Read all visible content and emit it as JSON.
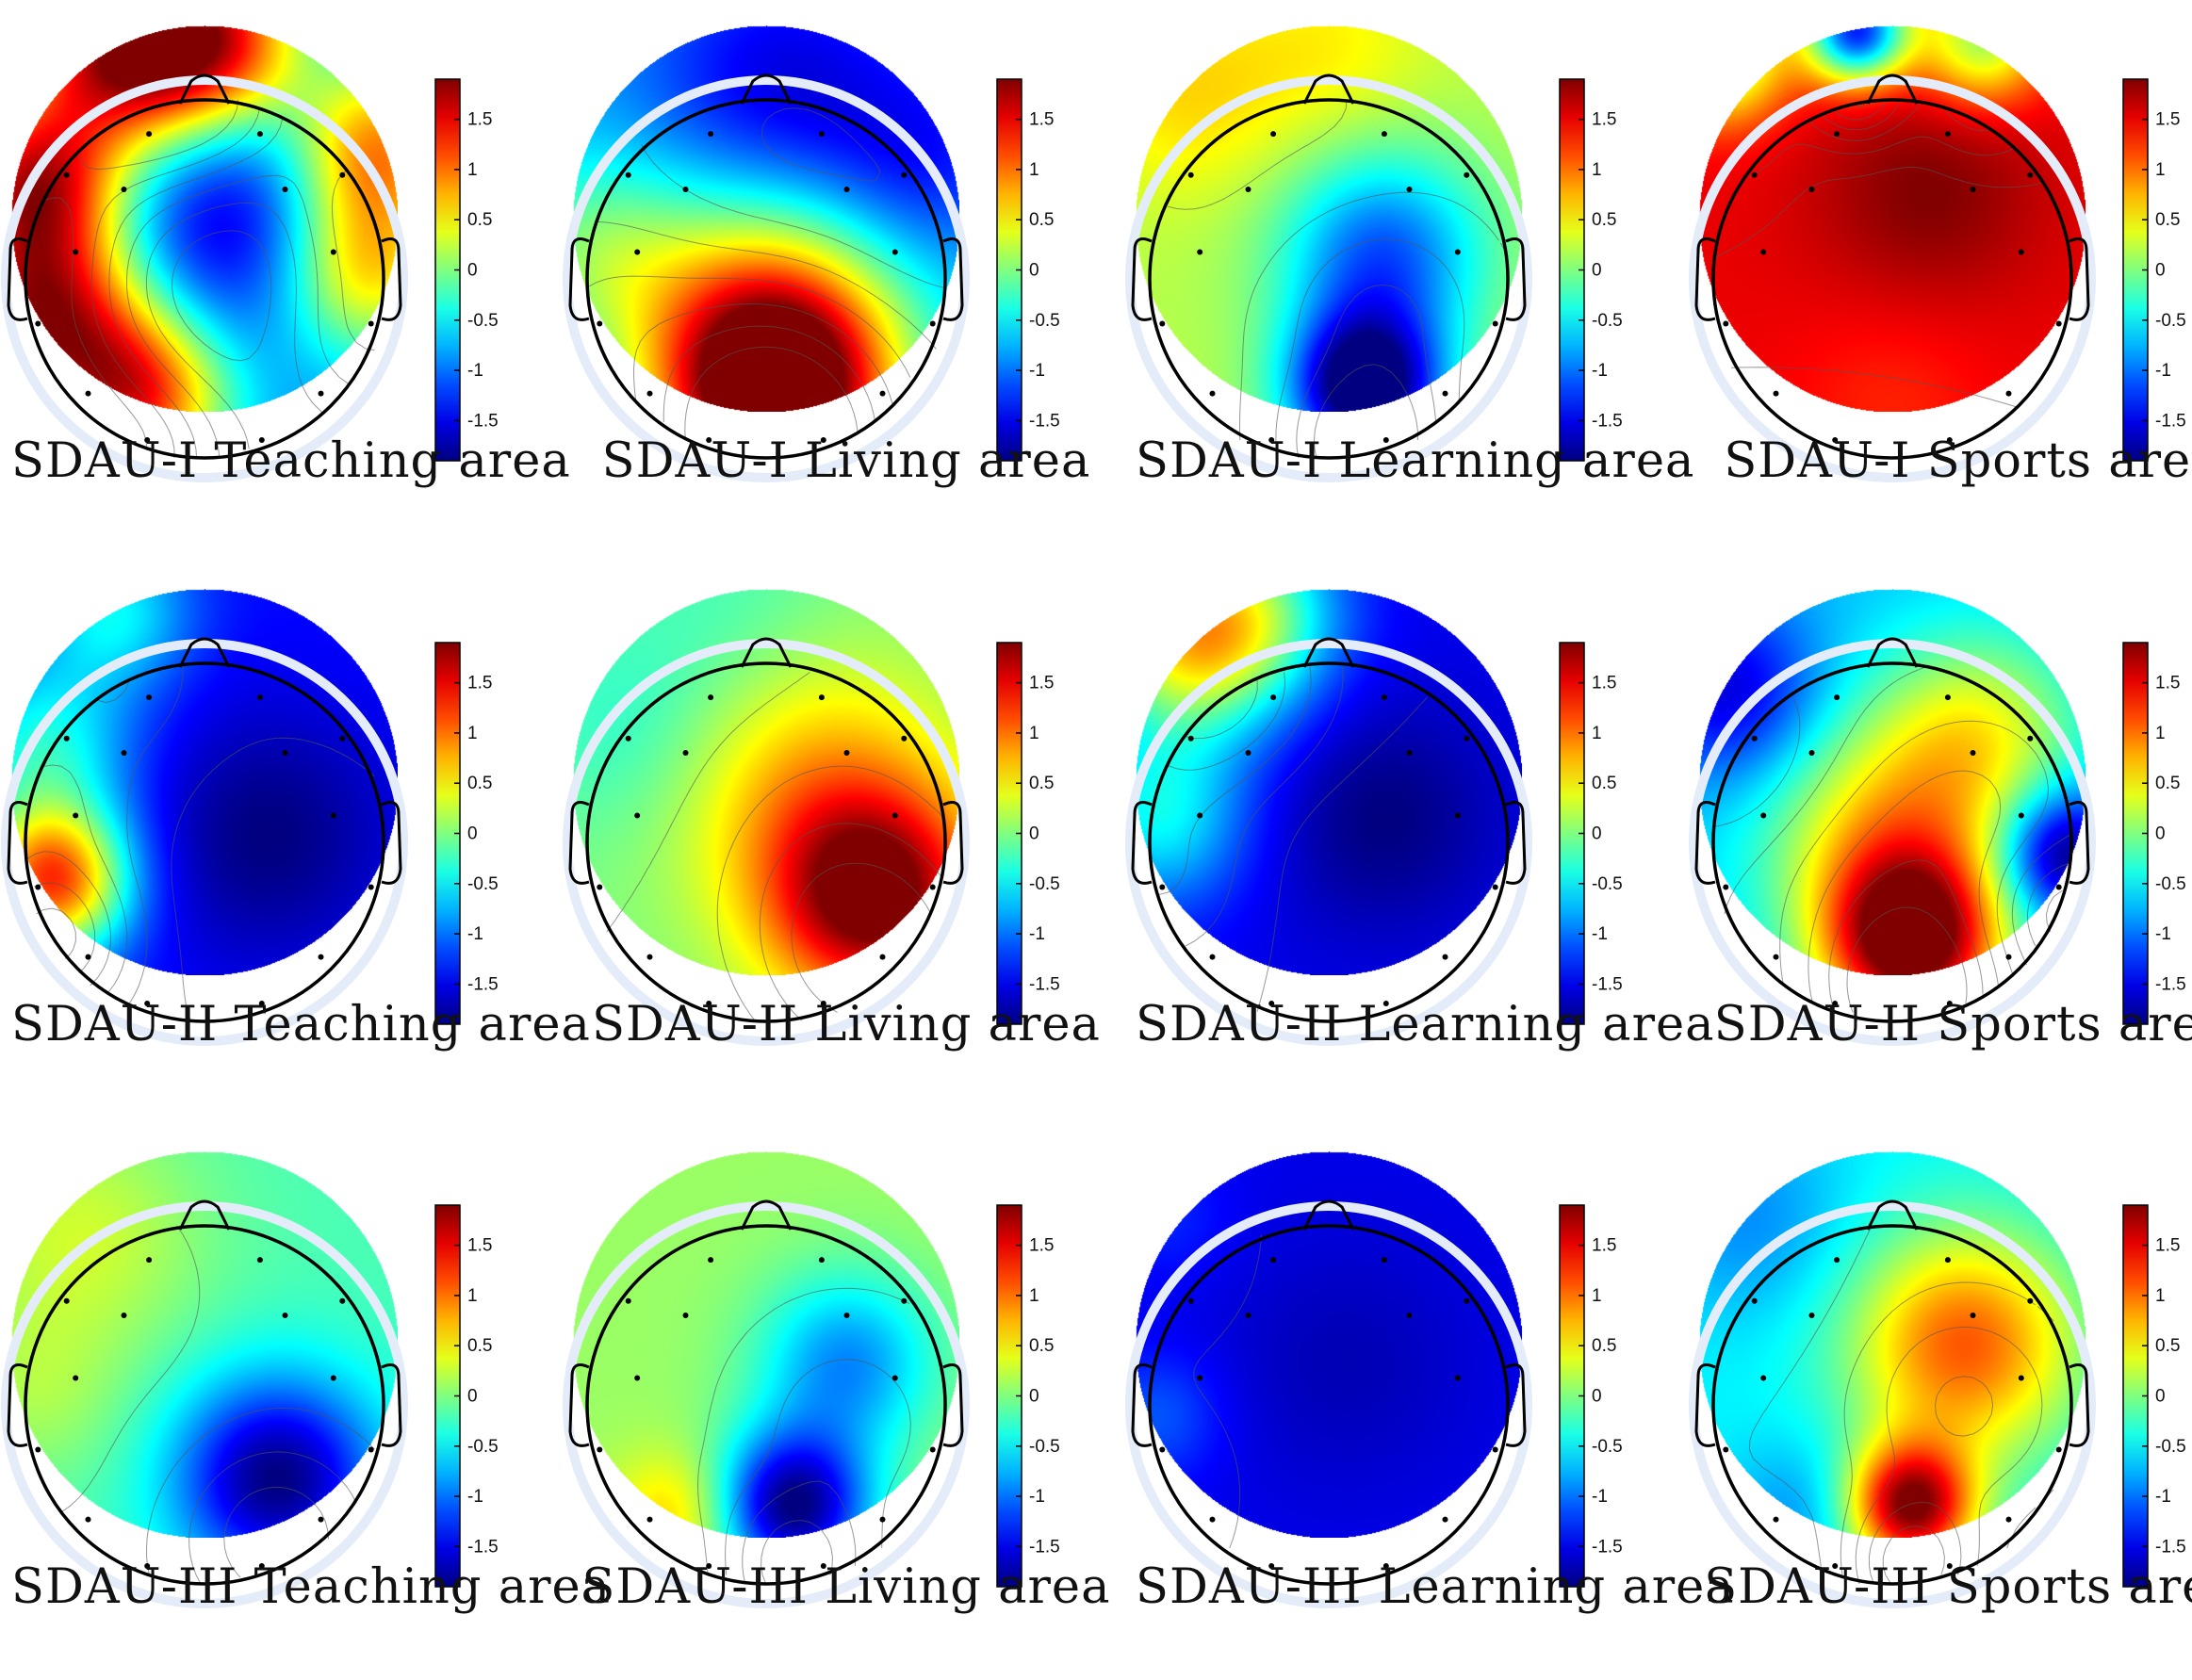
{
  "chart_data": {
    "type": "heatmap",
    "description_rows": [
      "SDAU-I",
      "SDAU-II",
      "SDAU-III"
    ],
    "description_cols": [
      "Teaching area",
      "Living area",
      "Learning area",
      "Sports area"
    ],
    "colorbar": {
      "range": [
        -1.9,
        1.9
      ],
      "ticks": [
        1.5,
        1,
        0.5,
        0,
        -0.5,
        -1,
        -1.5
      ],
      "tick_labels": [
        "1.5",
        "1",
        "0.5",
        "0",
        "-0.5",
        "-1",
        "-1.5"
      ],
      "colormap": "jet"
    },
    "electrodes": [
      {
        "x": -0.31,
        "y": -0.81
      },
      {
        "x": 0.31,
        "y": -0.81
      },
      {
        "x": -0.77,
        "y": -0.58
      },
      {
        "x": -0.45,
        "y": -0.5
      },
      {
        "x": 0.45,
        "y": -0.5
      },
      {
        "x": 0.77,
        "y": -0.58
      },
      {
        "x": -0.72,
        "y": -0.15
      },
      {
        "x": 0.72,
        "y": -0.15
      },
      {
        "x": -0.93,
        "y": 0.25
      },
      {
        "x": 0.93,
        "y": 0.25
      },
      {
        "x": -0.65,
        "y": 0.64
      },
      {
        "x": 0.65,
        "y": 0.64
      },
      {
        "x": -0.32,
        "y": 0.9
      },
      {
        "x": 0.32,
        "y": 0.9
      }
    ],
    "panels": [
      {
        "label": "SDAU-I  Teaching area",
        "base": -0.9,
        "blobs": [
          {
            "x": -0.45,
            "y": -0.95,
            "s": 0.4,
            "a": 2.6
          },
          {
            "x": 0.1,
            "y": -1.0,
            "s": 0.35,
            "a": 1.8
          },
          {
            "x": -0.95,
            "y": -0.2,
            "s": 0.35,
            "a": 2.2
          },
          {
            "x": -0.9,
            "y": 0.55,
            "s": 0.4,
            "a": 2.4
          },
          {
            "x": -0.35,
            "y": 1.0,
            "s": 0.35,
            "a": 2.0
          },
          {
            "x": 0.95,
            "y": -0.4,
            "s": 0.35,
            "a": 1.8
          },
          {
            "x": 0.9,
            "y": 0.3,
            "s": 0.35,
            "a": 1.5
          },
          {
            "x": 0.15,
            "y": 0.0,
            "s": 0.5,
            "a": -0.8
          }
        ]
      },
      {
        "label": "SDAU-I  Living area",
        "base": -0.8,
        "blobs": [
          {
            "x": 0.05,
            "y": 1.0,
            "s": 0.45,
            "a": 2.9
          },
          {
            "x": 0.0,
            "y": 0.5,
            "s": 0.55,
            "a": 1.3
          },
          {
            "x": -0.95,
            "y": 0.2,
            "s": 0.4,
            "a": 0.7
          },
          {
            "x": 0.1,
            "y": -0.7,
            "s": 0.55,
            "a": -0.8
          },
          {
            "x": 0.9,
            "y": -0.3,
            "s": 0.4,
            "a": -0.5
          }
        ]
      },
      {
        "label": "SDAU-I  Learning area",
        "base": 0.2,
        "blobs": [
          {
            "x": 0.2,
            "y": 0.95,
            "s": 0.3,
            "a": -2.4
          },
          {
            "x": 0.3,
            "y": 0.2,
            "s": 0.4,
            "a": -1.3
          },
          {
            "x": -0.8,
            "y": -0.7,
            "s": 0.4,
            "a": 0.4
          },
          {
            "x": 0.0,
            "y": -0.95,
            "s": 0.4,
            "a": 0.3
          }
        ]
      },
      {
        "label": "SDAU-I  Sports area",
        "base": 1.5,
        "blobs": [
          {
            "x": -0.2,
            "y": -1.05,
            "s": 0.2,
            "a": -2.8
          },
          {
            "x": 0.5,
            "y": -1.0,
            "s": 0.25,
            "a": -1.4
          },
          {
            "x": -0.95,
            "y": -0.9,
            "s": 0.25,
            "a": -1.5
          },
          {
            "x": 0.2,
            "y": -0.15,
            "s": 0.45,
            "a": 0.4
          },
          {
            "x": 0.0,
            "y": 1.0,
            "s": 0.4,
            "a": -0.2
          }
        ]
      },
      {
        "label": "SDAU-II  Teaching area",
        "base": -1.4,
        "blobs": [
          {
            "x": -0.85,
            "y": 0.55,
            "s": 0.3,
            "a": 2.6
          },
          {
            "x": -0.9,
            "y": -0.2,
            "s": 0.35,
            "a": 1.0
          },
          {
            "x": -0.5,
            "y": -0.95,
            "s": 0.3,
            "a": 0.9
          },
          {
            "x": 0.35,
            "y": 0.3,
            "s": 0.5,
            "a": -0.5
          }
        ]
      },
      {
        "label": "SDAU-II  Living area",
        "base": 0.0,
        "blobs": [
          {
            "x": 0.6,
            "y": 0.65,
            "s": 0.4,
            "a": 1.9
          },
          {
            "x": 0.3,
            "y": 0.1,
            "s": 0.55,
            "a": 0.8
          },
          {
            "x": -0.8,
            "y": -0.3,
            "s": 0.45,
            "a": -0.3
          },
          {
            "x": -0.2,
            "y": -1.0,
            "s": 0.45,
            "a": -0.2
          }
        ]
      },
      {
        "label": "SDAU-II  Learning area",
        "base": -1.5,
        "blobs": [
          {
            "x": -0.8,
            "y": -0.8,
            "s": 0.4,
            "a": 1.9
          },
          {
            "x": -0.95,
            "y": 0.2,
            "s": 0.35,
            "a": 1.0
          },
          {
            "x": -0.4,
            "y": -0.95,
            "s": 0.35,
            "a": 0.9
          },
          {
            "x": 0.3,
            "y": 0.2,
            "s": 0.45,
            "a": -0.4
          }
        ]
      },
      {
        "label": "SDAU-II  Sports area",
        "base": -0.7,
        "blobs": [
          {
            "x": 0.1,
            "y": 0.9,
            "s": 0.35,
            "a": 2.6
          },
          {
            "x": 0.0,
            "y": 0.3,
            "s": 0.5,
            "a": 1.3
          },
          {
            "x": 0.5,
            "y": -0.3,
            "s": 0.4,
            "a": 0.9
          },
          {
            "x": -0.9,
            "y": -0.5,
            "s": 0.35,
            "a": -0.9
          },
          {
            "x": 0.95,
            "y": 0.4,
            "s": 0.25,
            "a": -1.4
          }
        ]
      },
      {
        "label": "SDAU-III  Teaching area",
        "base": -0.2,
        "blobs": [
          {
            "x": 0.4,
            "y": 0.75,
            "s": 0.4,
            "a": -1.7
          },
          {
            "x": -0.7,
            "y": -0.6,
            "s": 0.5,
            "a": 0.5
          },
          {
            "x": -0.95,
            "y": 0.3,
            "s": 0.35,
            "a": 0.3
          }
        ]
      },
      {
        "label": "SDAU-III  Living area",
        "base": 0.1,
        "blobs": [
          {
            "x": 0.15,
            "y": 0.9,
            "s": 0.3,
            "a": -2.0
          },
          {
            "x": 0.45,
            "y": 0.1,
            "s": 0.35,
            "a": -1.0
          },
          {
            "x": -0.5,
            "y": 0.95,
            "s": 0.25,
            "a": 0.6
          }
        ]
      },
      {
        "label": "SDAU-III  Learning area",
        "base": -1.5,
        "blobs": [
          {
            "x": -0.95,
            "y": 0.4,
            "s": 0.25,
            "a": 0.4
          },
          {
            "x": -0.9,
            "y": -0.7,
            "s": 0.25,
            "a": 0.2
          },
          {
            "x": 0.1,
            "y": 0.1,
            "s": 0.5,
            "a": -0.2
          }
        ]
      },
      {
        "label": "SDAU-III  Sports area",
        "base": -0.5,
        "blobs": [
          {
            "x": 0.1,
            "y": 0.9,
            "s": 0.25,
            "a": 2.4
          },
          {
            "x": 0.4,
            "y": 0.0,
            "s": 0.45,
            "a": 1.6
          },
          {
            "x": -0.8,
            "y": -0.7,
            "s": 0.4,
            "a": -0.4
          },
          {
            "x": -0.5,
            "y": 0.95,
            "s": 0.3,
            "a": -0.4
          }
        ]
      }
    ]
  }
}
